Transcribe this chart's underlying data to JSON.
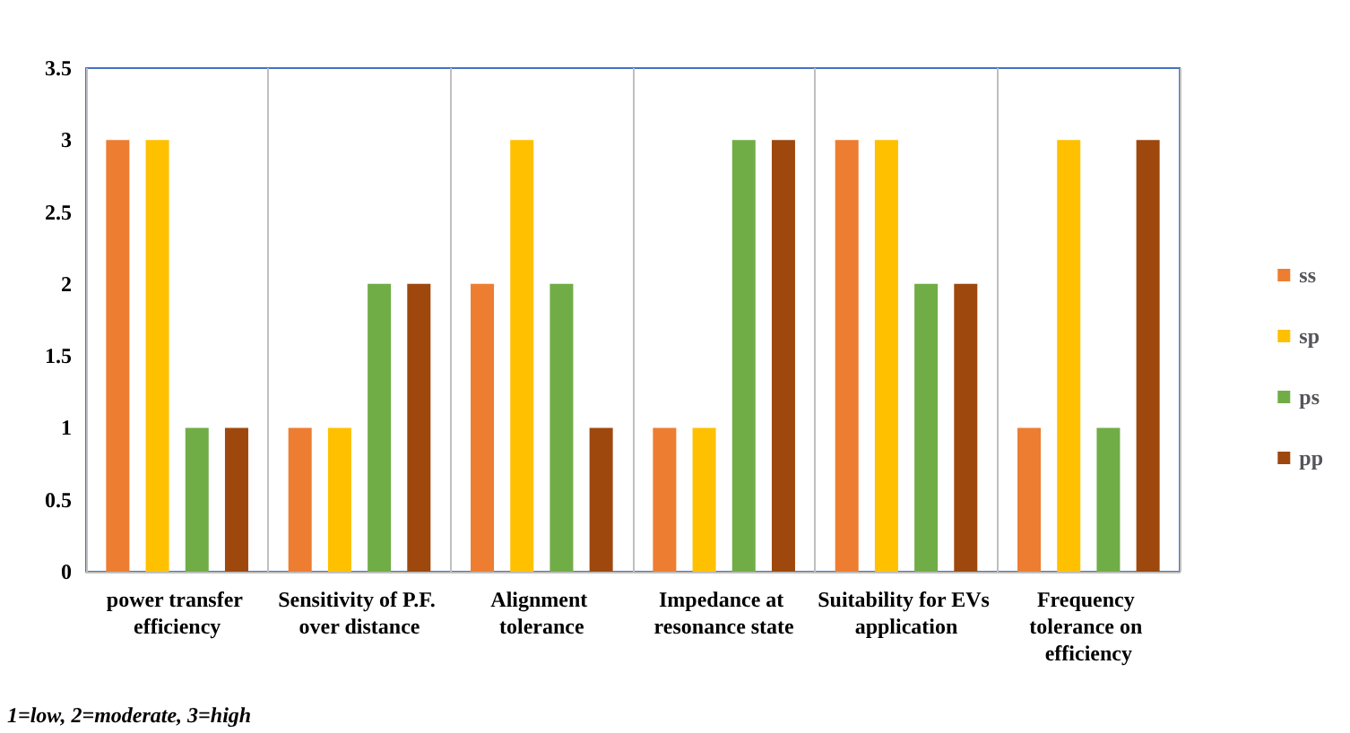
{
  "chart_data": {
    "type": "bar",
    "categories": [
      "power transfer efficiency",
      "Sensitivity of P.F. over distance",
      "Alignment tolerance",
      "Impedance at resonance state",
      "Suitability for EVs application",
      "Frequency tolerance on efficiency"
    ],
    "series": [
      {
        "name": "ss",
        "color": "#ed7d31",
        "values": [
          3,
          1,
          2,
          1,
          3,
          1
        ]
      },
      {
        "name": "sp",
        "color": "#ffc000",
        "values": [
          3,
          1,
          3,
          1,
          3,
          3
        ]
      },
      {
        "name": "ps",
        "color": "#70ad47",
        "values": [
          1,
          2,
          2,
          3,
          2,
          1
        ]
      },
      {
        "name": "pp",
        "color": "#9e480e",
        "values": [
          1,
          2,
          1,
          3,
          2,
          3
        ]
      }
    ],
    "ylim": [
      0,
      3.5
    ],
    "yticks": [
      0,
      0.5,
      1,
      1.5,
      2,
      2.5,
      3,
      3.5
    ],
    "grid": "x",
    "legend": "right",
    "annotations": [
      "1=low, 2=moderate, 3=high"
    ]
  }
}
